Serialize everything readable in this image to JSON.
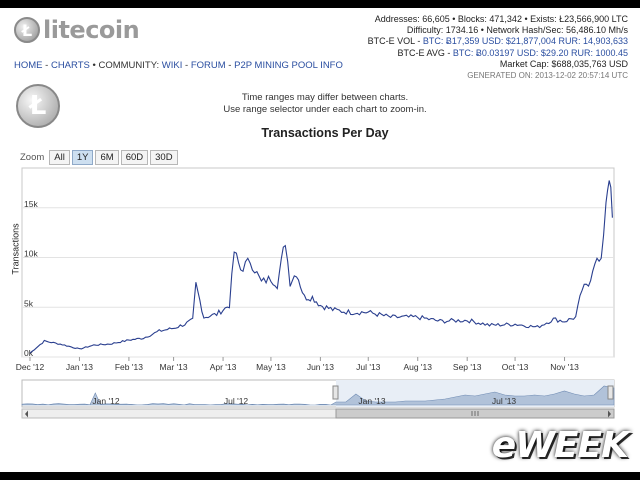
{
  "header": {
    "logo_text": "litecoin",
    "logo_symbol": "Ł",
    "nav": {
      "home": "HOME",
      "sep1": " - ",
      "charts": "CHARTS",
      "bullet": " • ",
      "community_label": "COMMUNITY:",
      "wiki": "WIKI",
      "sep2": " - ",
      "forum": "FORUM",
      "sep3": " - ",
      "p2p": "P2P MINING POOL INFO"
    }
  },
  "stats": {
    "line1": "Addresses: 66,605 • Blocks: 471,342 • Exists: Ł23,566,900 LTC",
    "line2": "Difficulty: 1734.16 • Network Hash/Sec: 56,486.10 Mh/s",
    "vol_label": "BTC-E VOL - ",
    "vol_values": "BTC: Ƀ17,359  USD: $21,877,004  RUR: 14,903,633",
    "avg_label": "BTC-E AVG - ",
    "avg_values": "BTC: Ƀ0.03197  USD: $29.20  RUR: 1000.45",
    "market_cap": "Market Cap: $688,035,763 USD",
    "generated": "GENERATED ON: 2013-12-02 20:57:14 UTC"
  },
  "notice": {
    "line1": "Time ranges may differ between charts.",
    "line2": "Use range selector under each chart to zoom-in."
  },
  "zoom": {
    "label": "Zoom",
    "buttons": [
      "All",
      "1Y",
      "6M",
      "60D",
      "30D"
    ],
    "active": "1Y"
  },
  "watermark": "eWEEK",
  "colors": {
    "line": "#2a3f8f",
    "nav_fill": "#9fb3cf",
    "link": "#2a4ea0"
  },
  "chart_data": {
    "type": "line",
    "title": "Transactions Per Day",
    "ylabel": "Transactions",
    "xlabel": "",
    "y_ticks": [
      "0k",
      "5k",
      "10k",
      "15k"
    ],
    "y_tick_values": [
      0,
      5000,
      10000,
      15000
    ],
    "ylim": [
      0,
      19000
    ],
    "x_ticks": [
      "Dec '12",
      "Jan '13",
      "Feb '13",
      "Mar '13",
      "Apr '13",
      "May '13",
      "Jun '13",
      "Jul '13",
      "Aug '13",
      "Sep '13",
      "Oct '13",
      "Nov '13"
    ],
    "x": [
      "2012-12-01",
      "2012-12-10",
      "2012-12-20",
      "2013-01-01",
      "2013-01-10",
      "2013-01-20",
      "2013-02-01",
      "2013-02-10",
      "2013-02-20",
      "2013-03-01",
      "2013-03-08",
      "2013-03-13",
      "2013-03-15",
      "2013-03-20",
      "2013-03-28",
      "2013-04-05",
      "2013-04-08",
      "2013-04-12",
      "2013-04-18",
      "2013-04-25",
      "2013-05-01",
      "2013-05-05",
      "2013-05-10",
      "2013-05-13",
      "2013-05-17",
      "2013-05-22",
      "2013-05-27",
      "2013-06-01",
      "2013-06-10",
      "2013-06-20",
      "2013-07-01",
      "2013-07-15",
      "2013-08-01",
      "2013-08-15",
      "2013-09-01",
      "2013-09-15",
      "2013-10-01",
      "2013-10-15",
      "2013-10-25",
      "2013-11-01",
      "2013-11-08",
      "2013-11-12",
      "2013-11-16",
      "2013-11-20",
      "2013-11-24",
      "2013-11-27",
      "2013-11-29",
      "2013-12-01"
    ],
    "values": [
      400,
      1600,
      1300,
      800,
      1200,
      1300,
      1700,
      1900,
      2600,
      2900,
      3300,
      3700,
      7300,
      4000,
      4300,
      5200,
      10600,
      8800,
      9700,
      7500,
      7900,
      7300,
      11700,
      7500,
      8500,
      6000,
      6000,
      5200,
      4700,
      4500,
      4500,
      4000,
      4000,
      3600,
      3700,
      3200,
      3300,
      3000,
      3800,
      3600,
      4000,
      6800,
      7200,
      9800,
      9400,
      15800,
      18500,
      14000
    ],
    "navigator": {
      "x_ticks": [
        "Jan '12",
        "Jul '12",
        "Jan '13",
        "Jul '13"
      ]
    }
  }
}
